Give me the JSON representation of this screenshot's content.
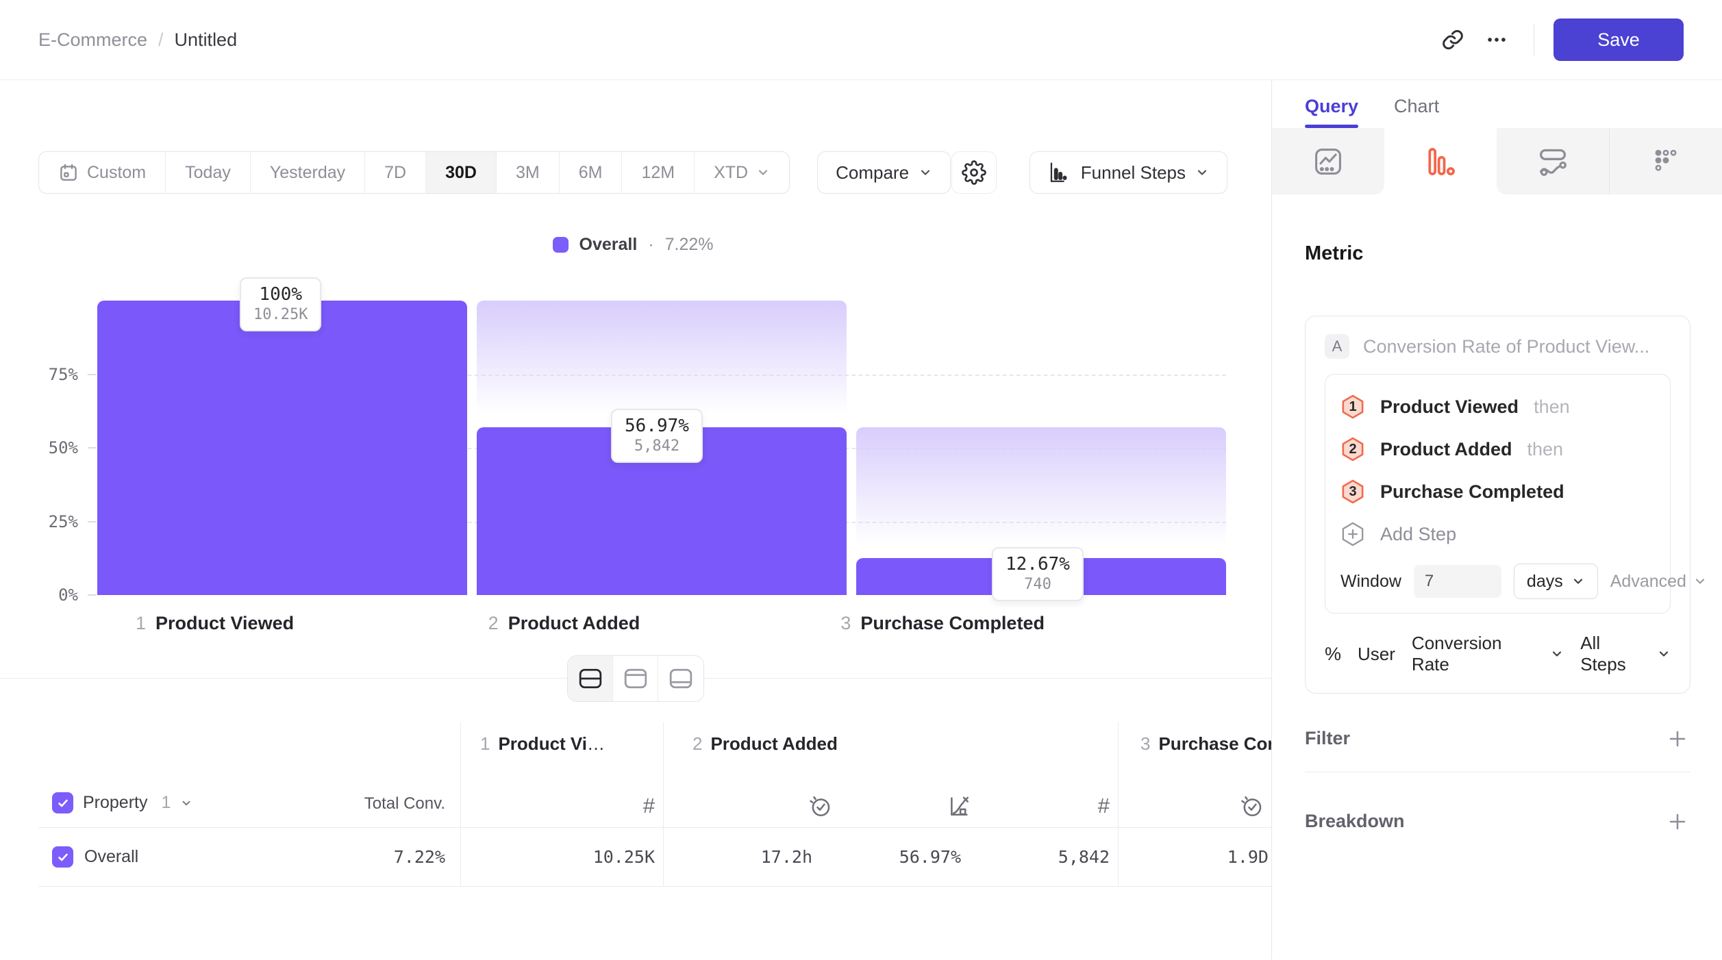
{
  "colors": {
    "accent_purple": "#7a58f9",
    "legend_swatch": "#7c5cfa",
    "save_button": "#4b41d3",
    "active_tab_purple": "#4b3fd6",
    "funnel_icon_orange": "#f2674a"
  },
  "header": {
    "breadcrumb": {
      "parent": "E-Commerce",
      "separator": "/",
      "current": "Untitled"
    },
    "save_label": "Save"
  },
  "toolbar": {
    "date_presets": [
      "Custom",
      "Today",
      "Yesterday",
      "7D",
      "30D",
      "3M",
      "6M",
      "12M",
      "XTD"
    ],
    "selected_preset": "30D",
    "compare_label": "Compare",
    "chart_type_label": "Funnel Steps"
  },
  "legend": {
    "series": "Overall",
    "separator": "·",
    "value": "7.22%"
  },
  "chart_data": {
    "type": "funnel-bar",
    "categories": [
      "Product Viewed",
      "Product Added",
      "Purchase Completed"
    ],
    "step_numbers": [
      "1",
      "2",
      "3"
    ],
    "values": [
      100,
      56.97,
      12.67
    ],
    "value_labels": [
      "100%",
      "56.97%",
      "12.67%"
    ],
    "counts": [
      "10.25K",
      "5,842",
      "740"
    ],
    "y_ticks": [
      "75%",
      "50%",
      "25%",
      "0%"
    ],
    "ylim": [
      0,
      100
    ],
    "series_name": "Overall",
    "overall_conversion": "7.22%",
    "legend_position": "top-center",
    "grid": "dashed-horizontal"
  },
  "table": {
    "property_label": "Property",
    "property_index": "1",
    "total_conv_header": "Total Conv.",
    "columns": [
      {
        "num": "1",
        "name": "Product Viewed"
      },
      {
        "num": "2",
        "name": "Product Added"
      },
      {
        "num": "3",
        "name": "Purchase Completed"
      }
    ],
    "row": {
      "name": "Overall",
      "total_conv": "7.22%",
      "step1_count": "10.25K",
      "step2_time": "17.2h",
      "step2_rate": "56.97%",
      "step2_count": "5,842",
      "step3_time": "1.9D"
    }
  },
  "panel": {
    "tabs": {
      "query": "Query",
      "chart": "Chart"
    },
    "metric": {
      "heading": "Metric",
      "series_letter": "A",
      "series_title": "Conversion Rate of Product View...",
      "steps": [
        {
          "num": "1",
          "name": "Product Viewed",
          "suffix": "then"
        },
        {
          "num": "2",
          "name": "Product Added",
          "suffix": "then"
        },
        {
          "num": "3",
          "name": "Purchase Completed",
          "suffix": ""
        }
      ],
      "add_step_label": "Add Step",
      "window": {
        "label": "Window",
        "value": "7",
        "unit": "days",
        "advanced_label": "Advanced"
      },
      "measured_as": {
        "symbol": "%",
        "entity": "User",
        "measure": "Conversion Rate",
        "scope": "All Steps"
      }
    },
    "filter_label": "Filter",
    "breakdown_label": "Breakdown"
  }
}
